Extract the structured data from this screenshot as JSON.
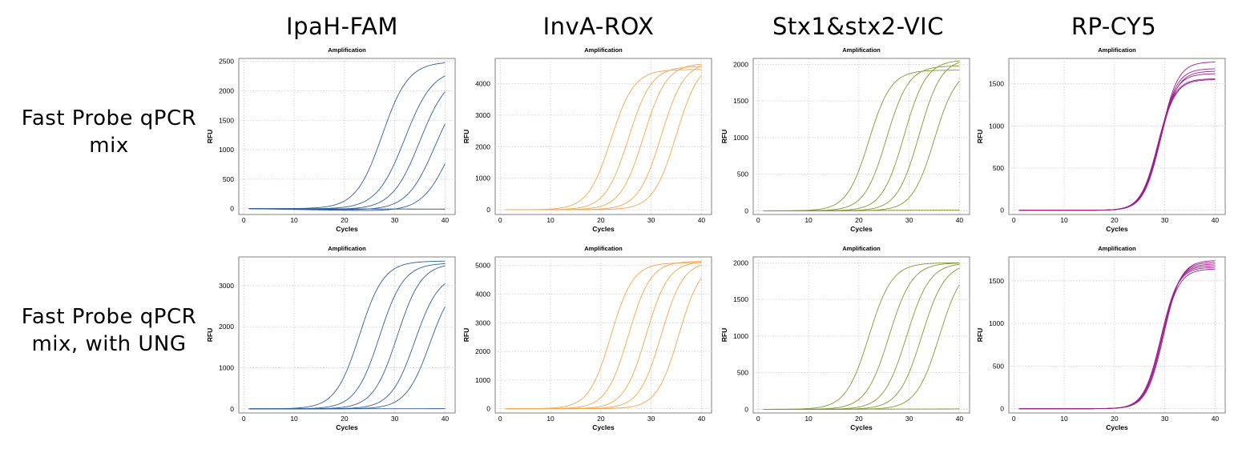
{
  "columns": [
    "IpaH-FAM",
    "InvA-ROX",
    "Stx1&stx2-VIC",
    "RP-CY5"
  ],
  "rows": [
    {
      "line1": "Fast  Probe  qPCR",
      "line2": "mix"
    },
    {
      "line1": "Fast  Probe  qPCR",
      "line2": "mix,  with  UNG"
    }
  ],
  "chart_data": [
    {
      "type": "line",
      "row": 0,
      "col": 0,
      "title": "Amplification",
      "xlabel": "Cycles",
      "ylabel": "RFU",
      "color": "#2e5e9a",
      "xlim": [
        -1,
        42
      ],
      "ylim": [
        -100,
        2550
      ],
      "xticks": [
        0,
        10,
        20,
        30,
        40
      ],
      "yticks": [
        0,
        500,
        1000,
        1500,
        2000,
        2500
      ],
      "series": [
        {
          "plateau": 2500,
          "ct": 27.5,
          "slope": 2.6,
          "baseline_drift": -5
        },
        {
          "plateau": 2400,
          "ct": 32,
          "slope": 2.8,
          "baseline_drift": -15
        },
        {
          "plateau": 2350,
          "ct": 35,
          "slope": 2.8,
          "baseline_drift": -30
        },
        {
          "plateau": 2200,
          "ct": 38,
          "slope": 2.8,
          "baseline_drift": -40
        },
        {
          "plateau": 2000,
          "ct": 41,
          "slope": 2.8,
          "baseline_drift": -60
        },
        {
          "plateau": 0,
          "ct": 50,
          "slope": 3,
          "baseline_drift": -10
        }
      ]
    },
    {
      "type": "line",
      "row": 0,
      "col": 1,
      "title": "Amplification",
      "xlabel": "Cycles",
      "ylabel": "RFU",
      "color": "#f5a54a",
      "xlim": [
        -1,
        42
      ],
      "ylim": [
        -150,
        4800
      ],
      "xticks": [
        0,
        10,
        20,
        30,
        40
      ],
      "yticks": [
        0,
        1000,
        2000,
        3000,
        4000
      ],
      "series": [
        {
          "plateau": 4450,
          "ct": 22,
          "slope": 2.3,
          "baseline_drift": 0
        },
        {
          "plateau": 4550,
          "ct": 25.5,
          "slope": 2.3,
          "baseline_drift": 0
        },
        {
          "plateau": 4650,
          "ct": 28.5,
          "slope": 2.3,
          "baseline_drift": 0
        },
        {
          "plateau": 4700,
          "ct": 32,
          "slope": 2.3,
          "baseline_drift": 0
        },
        {
          "plateau": 4750,
          "ct": 35,
          "slope": 2.3,
          "baseline_drift": 0
        }
      ]
    },
    {
      "type": "line",
      "row": 0,
      "col": 2,
      "title": "Amplification",
      "xlabel": "Cycles",
      "ylabel": "RFU",
      "color": "#7f9a2e",
      "xlim": [
        -1,
        42
      ],
      "ylim": [
        -50,
        2080
      ],
      "xticks": [
        0,
        10,
        20,
        30,
        40
      ],
      "yticks": [
        0,
        500,
        1000,
        1500,
        2000
      ],
      "series": [
        {
          "plateau": 1920,
          "ct": 22,
          "slope": 2.2,
          "baseline_drift": 0
        },
        {
          "plateau": 1980,
          "ct": 25.5,
          "slope": 2.2,
          "baseline_drift": 0
        },
        {
          "plateau": 2060,
          "ct": 29,
          "slope": 2.2,
          "baseline_drift": 0
        },
        {
          "plateau": 2080,
          "ct": 32,
          "slope": 2.2,
          "baseline_drift": 0
        },
        {
          "plateau": 1950,
          "ct": 35,
          "slope": 2.2,
          "baseline_drift": 0
        },
        {
          "plateau": 0,
          "ct": 50,
          "slope": 3,
          "baseline_drift": 10
        }
      ]
    },
    {
      "type": "line",
      "row": 0,
      "col": 3,
      "title": "Amplification",
      "xlabel": "Cycles",
      "ylabel": "RFU",
      "color": "#9c1e8c",
      "xlim": [
        -1,
        42
      ],
      "ylim": [
        -50,
        1800
      ],
      "xticks": [
        0,
        10,
        20,
        30,
        40
      ],
      "yticks": [
        0,
        500,
        1000,
        1500
      ],
      "series": [
        {
          "plateau": 1760,
          "ct": 29.2,
          "slope": 1.7,
          "baseline_drift": 0
        },
        {
          "plateau": 1680,
          "ct": 29.0,
          "slope": 1.7,
          "baseline_drift": 0
        },
        {
          "plateau": 1650,
          "ct": 29.1,
          "slope": 1.7,
          "baseline_drift": 0
        },
        {
          "plateau": 1620,
          "ct": 28.8,
          "slope": 1.7,
          "baseline_drift": 0
        },
        {
          "plateau": 1560,
          "ct": 28.6,
          "slope": 1.7,
          "baseline_drift": 0
        },
        {
          "plateau": 1550,
          "ct": 28.7,
          "slope": 1.7,
          "baseline_drift": 0
        }
      ]
    },
    {
      "type": "line",
      "row": 1,
      "col": 0,
      "title": "Amplification",
      "xlabel": "Cycles",
      "ylabel": "RFU",
      "color": "#2e5e9a",
      "xlim": [
        -1,
        42
      ],
      "ylim": [
        -100,
        3700
      ],
      "xticks": [
        0,
        10,
        20,
        30,
        40
      ],
      "yticks": [
        0,
        1000,
        2000,
        3000
      ],
      "series": [
        {
          "plateau": 3600,
          "ct": 23,
          "slope": 2.4,
          "baseline_drift": 0
        },
        {
          "plateau": 3550,
          "ct": 27,
          "slope": 2.4,
          "baseline_drift": 0
        },
        {
          "plateau": 3550,
          "ct": 30.5,
          "slope": 2.4,
          "baseline_drift": 0
        },
        {
          "plateau": 3300,
          "ct": 34,
          "slope": 2.4,
          "baseline_drift": 0
        },
        {
          "plateau": 3200,
          "ct": 37,
          "slope": 2.4,
          "baseline_drift": 0
        },
        {
          "plateau": 0,
          "ct": 50,
          "slope": 3,
          "baseline_drift": 5
        }
      ]
    },
    {
      "type": "line",
      "row": 1,
      "col": 1,
      "title": "Amplification",
      "xlabel": "Cycles",
      "ylabel": "RFU",
      "color": "#f5a54a",
      "xlim": [
        -1,
        42
      ],
      "ylim": [
        -150,
        5300
      ],
      "xticks": [
        0,
        10,
        20,
        30,
        40
      ],
      "yticks": [
        0,
        1000,
        2000,
        3000,
        4000,
        5000
      ],
      "series": [
        {
          "plateau": 5100,
          "ct": 22,
          "slope": 2.2,
          "baseline_drift": 0
        },
        {
          "plateau": 5150,
          "ct": 25.5,
          "slope": 2.2,
          "baseline_drift": 0
        },
        {
          "plateau": 5150,
          "ct": 29,
          "slope": 2.2,
          "baseline_drift": 0
        },
        {
          "plateau": 5150,
          "ct": 32,
          "slope": 2.2,
          "baseline_drift": 0
        },
        {
          "plateau": 5150,
          "ct": 35.5,
          "slope": 2.2,
          "baseline_drift": 0
        }
      ]
    },
    {
      "type": "line",
      "row": 1,
      "col": 2,
      "title": "Amplification",
      "xlabel": "Cycles",
      "ylabel": "RFU",
      "color": "#7f9a2e",
      "xlim": [
        -1,
        42
      ],
      "ylim": [
        -50,
        2080
      ],
      "xticks": [
        0,
        10,
        20,
        30,
        40
      ],
      "yticks": [
        0,
        500,
        1000,
        1500,
        2000
      ],
      "series": [
        {
          "plateau": 2000,
          "ct": 22,
          "slope": 2.3,
          "baseline_drift": 0
        },
        {
          "plateau": 2000,
          "ct": 26,
          "slope": 2.3,
          "baseline_drift": 0
        },
        {
          "plateau": 2000,
          "ct": 29.5,
          "slope": 2.3,
          "baseline_drift": 0
        },
        {
          "plateau": 2000,
          "ct": 32.5,
          "slope": 2.3,
          "baseline_drift": 0
        },
        {
          "plateau": 2000,
          "ct": 36,
          "slope": 2.3,
          "baseline_drift": 0
        },
        {
          "plateau": 0,
          "ct": 50,
          "slope": 3,
          "baseline_drift": 5
        }
      ]
    },
    {
      "type": "line",
      "row": 1,
      "col": 3,
      "title": "Amplification",
      "xlabel": "Cycles",
      "ylabel": "RFU",
      "color": "#9c1e8c",
      "xlim": [
        -1,
        42
      ],
      "ylim": [
        -50,
        1780
      ],
      "xticks": [
        0,
        10,
        20,
        30,
        40
      ],
      "yticks": [
        0,
        500,
        1000,
        1500
      ],
      "series": [
        {
          "plateau": 1740,
          "ct": 29.8,
          "slope": 1.7,
          "baseline_drift": 0
        },
        {
          "plateau": 1720,
          "ct": 29.6,
          "slope": 1.7,
          "baseline_drift": 0
        },
        {
          "plateau": 1700,
          "ct": 29.5,
          "slope": 1.7,
          "baseline_drift": 0
        },
        {
          "plateau": 1680,
          "ct": 29.3,
          "slope": 1.7,
          "baseline_drift": 0
        },
        {
          "plateau": 1660,
          "ct": 29.2,
          "slope": 1.7,
          "baseline_drift": 0
        },
        {
          "plateau": 1640,
          "ct": 29.4,
          "slope": 1.7,
          "baseline_drift": 0
        }
      ]
    }
  ]
}
